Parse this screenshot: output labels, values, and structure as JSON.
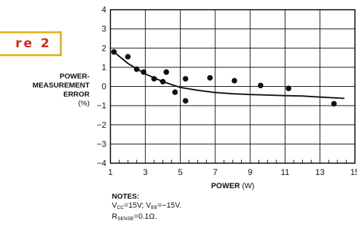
{
  "figure_label": "re 2",
  "notes": {
    "title": "NOTES:",
    "vcc_prefix": "V",
    "vcc_sub": "CC",
    "vcc_value": "=15V; ",
    "vee_prefix": "V",
    "vee_sub": "EE",
    "vee_value": "=−15V.",
    "rsense_prefix": "R",
    "rsense_sub": "SENSE",
    "rsense_value": "=0.1Ω."
  },
  "chart_data": {
    "type": "scatter",
    "ylabel_lines": [
      "POWER-",
      "MEASUREMENT",
      "ERROR"
    ],
    "ylabel_unit": "(%)",
    "xlabel": "POWER",
    "xlabel_unit": " (W)",
    "xlim": [
      1,
      15
    ],
    "ylim": [
      -4,
      4
    ],
    "x_ticks": [
      1,
      3,
      5,
      7,
      9,
      11,
      13,
      15
    ],
    "y_ticks": [
      4,
      3,
      2,
      1,
      0,
      -1,
      -2,
      -3,
      -4
    ],
    "x_tick_labels": [
      "1",
      "3",
      "5",
      "7",
      "9",
      "11",
      "13",
      "15"
    ],
    "y_tick_labels": [
      "4",
      "3",
      "2",
      "1",
      "0",
      "−1",
      "−2",
      "−3",
      "−4"
    ],
    "grid": true,
    "series": [
      {
        "kind": "points",
        "x": [
          1.2,
          2.0,
          2.5,
          2.9,
          3.5,
          4.0,
          4.2,
          4.7,
          5.3,
          5.3,
          6.7,
          8.1,
          9.6,
          11.2,
          13.8
        ],
        "y": [
          1.8,
          1.55,
          0.9,
          0.75,
          0.4,
          0.25,
          0.75,
          -0.3,
          0.4,
          -0.75,
          0.45,
          0.3,
          0.05,
          -0.1,
          -0.9
        ]
      },
      {
        "kind": "fit_line",
        "x": [
          1.2,
          2.0,
          3.0,
          4.0,
          5.0,
          6.0,
          7.0,
          8.0,
          9.0,
          10.0,
          11.0,
          12.0,
          13.0,
          14.4
        ],
        "y": [
          1.8,
          1.2,
          0.65,
          0.25,
          -0.05,
          -0.2,
          -0.32,
          -0.38,
          -0.42,
          -0.45,
          -0.48,
          -0.5,
          -0.55,
          -0.62
        ]
      }
    ]
  }
}
